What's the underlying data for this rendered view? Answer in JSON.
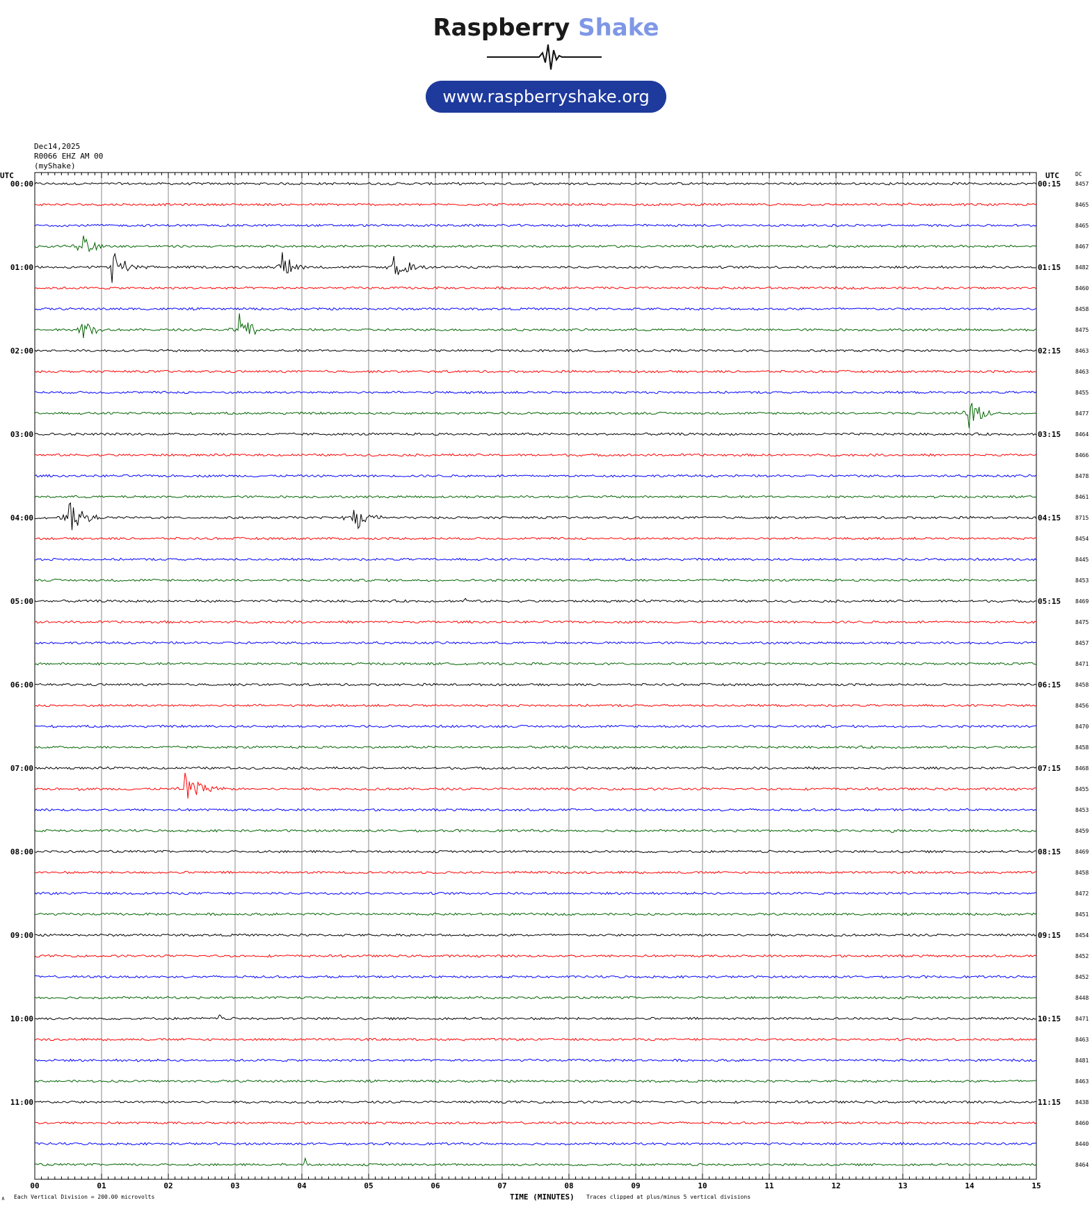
{
  "logo": {
    "word1": "Raspberry",
    "word2": "Shake",
    "url": "www.raspberryshake.org"
  },
  "header": {
    "date": "Dec14,2025",
    "station": "R0066 EHZ AM 00",
    "network": "(myShake)"
  },
  "axis": {
    "left_title": "UTC",
    "right_title": "UTC",
    "dc_title": "DC",
    "x_title": "TIME (MINUTES)",
    "footer_left": "Each Vertical Division =  200.00 microvolts",
    "footer_right": "Traces clipped at plus/minus 5 vertical divisions",
    "corner_symbol": "∧"
  },
  "chart_data": {
    "type": "line",
    "title": "",
    "xlabel": "TIME (MINUTES)",
    "xlim": [
      0,
      15
    ],
    "x_ticks": [
      "00",
      "01",
      "02",
      "03",
      "04",
      "05",
      "06",
      "07",
      "08",
      "09",
      "10",
      "11",
      "12",
      "13",
      "14",
      "15"
    ],
    "left_hour_labels": [
      "00:00",
      "01:00",
      "02:00",
      "03:00",
      "04:00",
      "05:00",
      "06:00",
      "07:00",
      "08:00",
      "09:00",
      "10:00",
      "11:00"
    ],
    "right_hour_labels": [
      "00:15",
      "01:15",
      "02:15",
      "03:15",
      "04:15",
      "05:15",
      "06:15",
      "07:15",
      "08:15",
      "09:15",
      "10:15",
      "11:15"
    ],
    "trace_colors": [
      "#000000",
      "#ff0000",
      "#0000ff",
      "#006400"
    ],
    "dc_offsets": [
      8457,
      8465,
      8465,
      8467,
      8482,
      8460,
      8458,
      8475,
      8463,
      8463,
      8455,
      8477,
      8464,
      8466,
      8478,
      8461,
      8715,
      8454,
      8445,
      8453,
      8469,
      8475,
      8457,
      8471,
      8458,
      8456,
      8470,
      8458,
      8468,
      8455,
      8453,
      8459,
      8469,
      8458,
      8472,
      8451,
      8454,
      8452,
      8452,
      8448,
      8471,
      8463,
      8481,
      8463,
      8438,
      8460,
      8440,
      8464
    ],
    "events": [
      {
        "trace": 3,
        "minute": 0.65,
        "amp": 5,
        "dur": 0.45
      },
      {
        "trace": 4,
        "minute": 1.15,
        "amp": 5,
        "dur": 0.55
      },
      {
        "trace": 4,
        "minute": 3.7,
        "amp": 4.5,
        "dur": 0.4
      },
      {
        "trace": 4,
        "minute": 5.35,
        "amp": 3.5,
        "dur": 0.6
      },
      {
        "trace": 7,
        "minute": 0.65,
        "amp": 5,
        "dur": 0.45
      },
      {
        "trace": 7,
        "minute": 3.05,
        "amp": 5,
        "dur": 0.45
      },
      {
        "trace": 11,
        "minute": 13.98,
        "amp": 4.5,
        "dur": 0.5
      },
      {
        "trace": 16,
        "minute": 0.5,
        "amp": 5,
        "dur": 0.5
      },
      {
        "trace": 16,
        "minute": 4.75,
        "amp": 5,
        "dur": 0.5
      },
      {
        "trace": 29,
        "minute": 2.25,
        "amp": 5,
        "dur": 0.6
      },
      {
        "trace": 29,
        "minute": 0.65,
        "amp": 0.6,
        "dur": 0.1
      }
    ],
    "spikes": [
      {
        "trace": 20,
        "minute": 6.45,
        "amp": 0.9
      },
      {
        "trace": 31,
        "minute": 12.85,
        "amp": -0.6
      },
      {
        "trace": 40,
        "minute": 2.77,
        "amp": 1.5
      },
      {
        "trace": 42,
        "minute": 1.55,
        "amp": -0.5
      },
      {
        "trace": 47,
        "minute": 4.05,
        "amp": 1.5
      },
      {
        "trace": 1,
        "minute": 13.1,
        "amp": 0.3
      }
    ]
  }
}
